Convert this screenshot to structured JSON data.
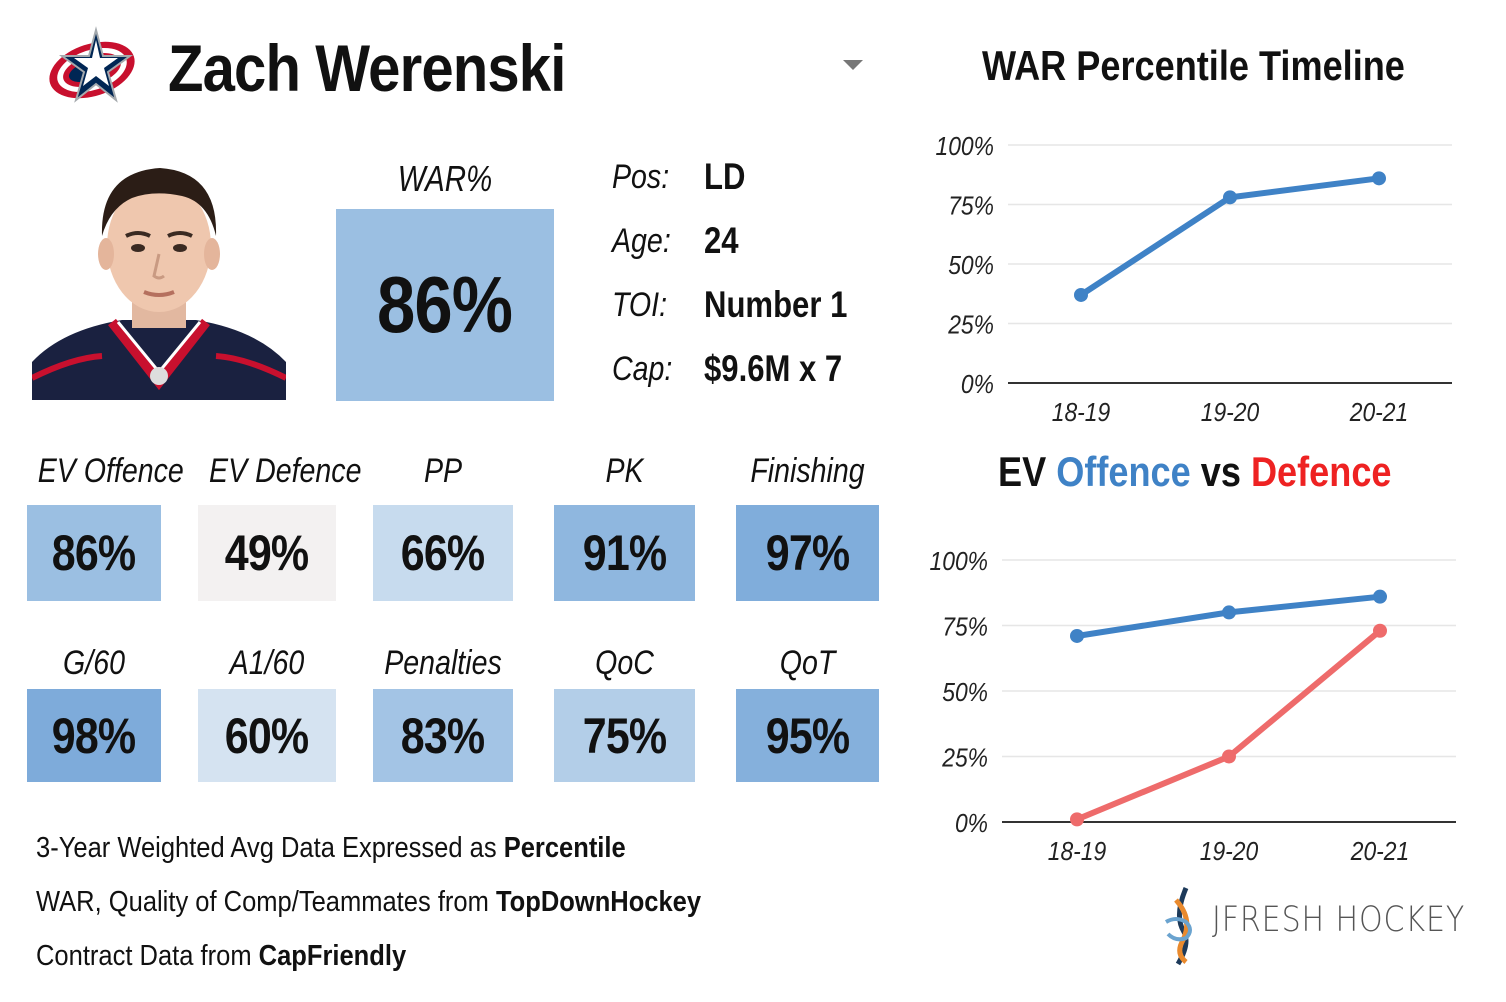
{
  "player": {
    "name": "Zach Werenski",
    "team_logo": "columbus-blue-jackets-logo",
    "headshot": "player-headshot"
  },
  "war": {
    "label": "WAR%",
    "value": "86%",
    "color": "#9bbfe2"
  },
  "info": [
    {
      "label": "Pos:",
      "value": "LD"
    },
    {
      "label": "Age:",
      "value": "24"
    },
    {
      "label": "TOI:",
      "value": "Number 1"
    },
    {
      "label": "Cap:",
      "value": "$9.6M x 7"
    }
  ],
  "stats_row1": [
    {
      "label": "EV Offence",
      "value": "86%",
      "color": "#9bbfe2"
    },
    {
      "label": "EV Defence",
      "value": "49%",
      "color": "#f3f1f1"
    },
    {
      "label": "PP",
      "value": "66%",
      "color": "#c7dbee"
    },
    {
      "label": "PK",
      "value": "91%",
      "color": "#8fb7df"
    },
    {
      "label": "Finishing",
      "value": "97%",
      "color": "#80addb"
    }
  ],
  "stats_row2": [
    {
      "label": "G/60",
      "value": "98%",
      "color": "#7eabda"
    },
    {
      "label": "A1/60",
      "value": "60%",
      "color": "#d5e3f1"
    },
    {
      "label": "Penalties",
      "value": "83%",
      "color": "#a3c4e5"
    },
    {
      "label": "QoC",
      "value": "75%",
      "color": "#b3cee8"
    },
    {
      "label": "QoT",
      "value": "95%",
      "color": "#85b0dc"
    }
  ],
  "notes": [
    {
      "text": "3-Year Weighted Avg Data Expressed as ",
      "bold": "Percentile"
    },
    {
      "text": "WAR, Quality of Comp/Teammates from ",
      "bold": "TopDownHockey"
    },
    {
      "text": "Contract Data from ",
      "bold": "CapFriendly"
    }
  ],
  "brand": {
    "text": "JFRESH HOCKEY",
    "icon": "hockey-stick-logo-icon"
  },
  "chart_data": [
    {
      "type": "line",
      "title": "WAR Percentile Timeline",
      "categories": [
        "18-19",
        "19-20",
        "20-21"
      ],
      "series": [
        {
          "values": [
            37,
            78,
            86
          ],
          "color": "#3f82c6"
        }
      ],
      "ylim": [
        0,
        100
      ],
      "yticks": [
        "0%",
        "25%",
        "50%",
        "75%",
        "100%"
      ],
      "grid": true
    },
    {
      "type": "line",
      "title_parts": [
        "EV",
        "Offence",
        "vs",
        "Defence"
      ],
      "title_colors": [
        "#111111",
        "#3f82c6",
        "#111111",
        "#ee2222"
      ],
      "categories": [
        "18-19",
        "19-20",
        "20-21"
      ],
      "series": [
        {
          "name": "Offence",
          "values": [
            71,
            80,
            86
          ],
          "color": "#3f82c6"
        },
        {
          "name": "Defence",
          "values": [
            1,
            25,
            73
          ],
          "color": "#ee6b6b"
        }
      ],
      "ylim": [
        0,
        100
      ],
      "yticks": [
        "0%",
        "25%",
        "50%",
        "75%",
        "100%"
      ],
      "grid": true
    }
  ]
}
